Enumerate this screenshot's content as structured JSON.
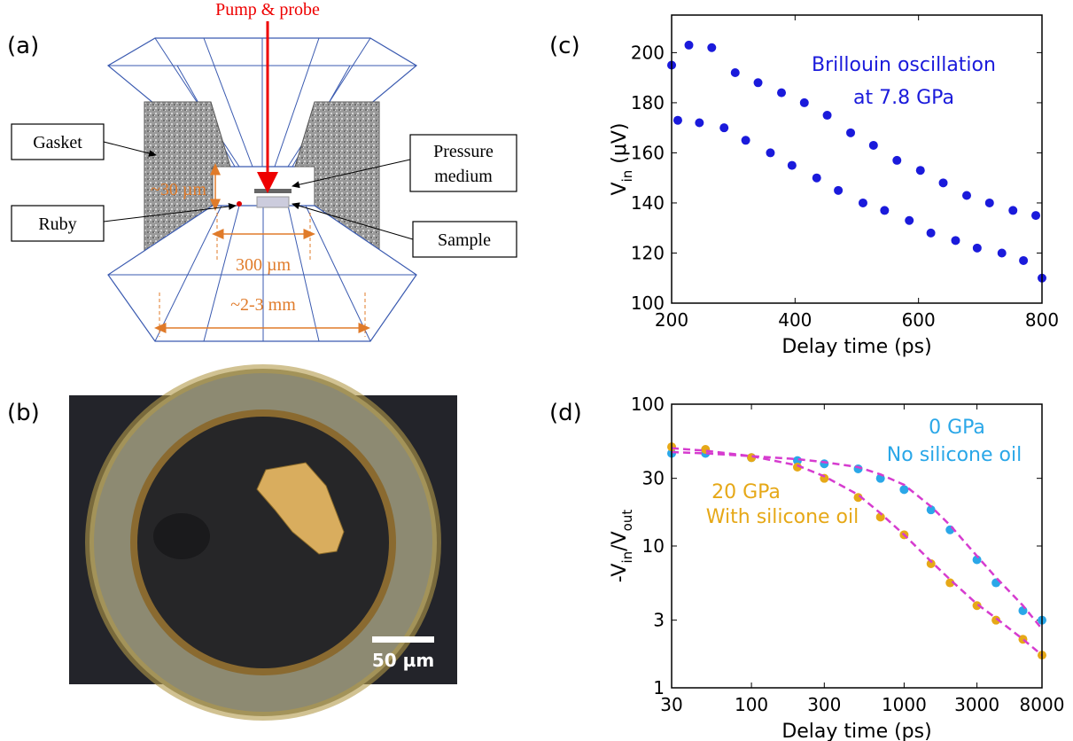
{
  "panel_labels": [
    "(a)",
    "(b)",
    "(c)",
    "(d)"
  ],
  "diagram": {
    "pump": "Pump & probe",
    "gasket": "Gasket",
    "pressure_medium": [
      "Pressure",
      "medium"
    ],
    "gap": "~30 µm",
    "ruby": "Ruby",
    "sample": "Sample",
    "culet": "300 µm",
    "table": "~2-3 mm"
  },
  "photo": {
    "scale_bar": "50 µm"
  },
  "chart_data": [
    {
      "type": "scatter",
      "xlabel": "Delay time (ps)",
      "ylabel": [
        "V",
        "in",
        " (μV)"
      ],
      "annotations": [
        {
          "text": "Brillouin oscillation",
          "color": "#1a1adb"
        },
        {
          "text": "at 7.8 GPa",
          "color": "#1a1adb"
        }
      ],
      "x": [
        200,
        210,
        228,
        245,
        265,
        285,
        303,
        320,
        340,
        360,
        378,
        395,
        415,
        435,
        452,
        470,
        490,
        510,
        527,
        545,
        565,
        585,
        603,
        620,
        640,
        660,
        678,
        695,
        715,
        735,
        753,
        770,
        790,
        800
      ],
      "series": [
        {
          "color": "#1a1adb",
          "values": [
            195,
            173,
            203,
            172,
            202,
            170,
            192,
            165,
            188,
            160,
            184,
            155,
            180,
            150,
            175,
            145,
            168,
            140,
            163,
            137,
            157,
            133,
            153,
            128,
            148,
            125,
            143,
            122,
            140,
            120,
            137,
            117,
            135,
            110
          ]
        }
      ],
      "xlim": [
        200,
        800
      ],
      "xticks": [
        200,
        400,
        600,
        800
      ],
      "ylim": [
        100,
        215
      ],
      "yticks": [
        100,
        120,
        140,
        160,
        180,
        200
      ]
    },
    {
      "type": "scatter",
      "xlabel": "Delay time (ps)",
      "ylabel": [
        "-V",
        "in",
        "/V",
        "out"
      ],
      "xscale": "log",
      "yscale": "log",
      "annotations": [
        {
          "text": "0 GPa",
          "color": "#2aa7e8"
        },
        {
          "text": "No silicone oil",
          "color": "#2aa7e8"
        },
        {
          "text": "20 GPa",
          "color": "#e6a817"
        },
        {
          "text": "With silicone oil",
          "color": "#e6a817"
        }
      ],
      "x": [
        30,
        50,
        100,
        200,
        300,
        500,
        700,
        1000,
        1500,
        2000,
        3000,
        4000,
        6000,
        8000
      ],
      "series": [
        {
          "color": "#2aa7e8",
          "values": [
            45,
            45,
            42,
            40,
            38,
            35,
            30,
            25,
            18,
            13,
            8,
            5.5,
            3.5,
            3
          ]
        },
        {
          "color": "#e6a817",
          "values": [
            50,
            48,
            42,
            36,
            30,
            22,
            16,
            12,
            7.5,
            5.5,
            3.8,
            3,
            2.2,
            1.7
          ]
        },
        {
          "color": "#d63ccf",
          "dashed": true,
          "values": [
            46,
            45,
            43,
            41,
            39,
            36,
            32,
            27,
            19,
            14,
            8.5,
            6,
            3.8,
            2.6
          ]
        },
        {
          "color": "#d63ccf",
          "dashed": true,
          "values": [
            49,
            47,
            43,
            37,
            31,
            23,
            17,
            12,
            7.8,
            5.8,
            3.9,
            3.1,
            2.2,
            1.7
          ]
        }
      ],
      "xlim": [
        30,
        8000
      ],
      "xticks": [
        30,
        100,
        300,
        1000,
        3000,
        8000
      ],
      "ylim": [
        1,
        100
      ],
      "yticks": [
        1,
        3,
        10,
        30,
        100
      ]
    }
  ]
}
